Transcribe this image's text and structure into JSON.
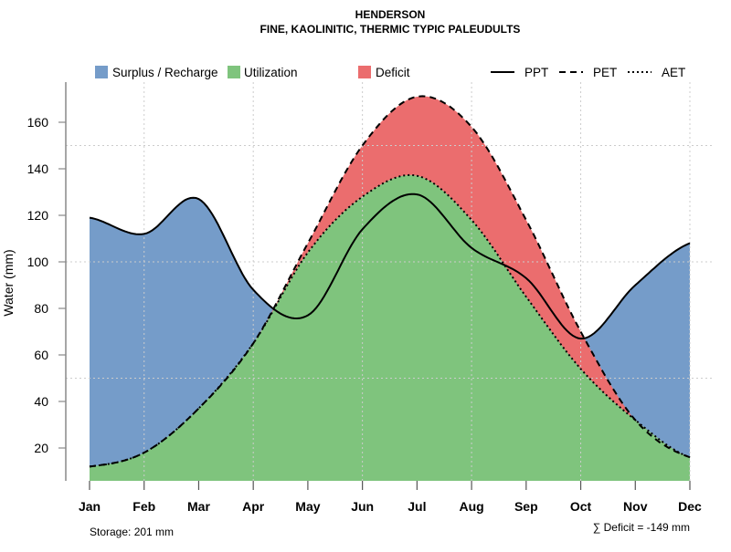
{
  "chart_data": {
    "type": "area",
    "title": "HENDERSON",
    "subtitle": "FINE, KAOLINITIC, THERMIC TYPIC PALEUDULTS",
    "xlabel": "",
    "ylabel": "Water (mm)",
    "categories": [
      "Jan",
      "Feb",
      "Mar",
      "Apr",
      "May",
      "Jun",
      "Jul",
      "Aug",
      "Sep",
      "Oct",
      "Nov",
      "Dec"
    ],
    "yticks": [
      20,
      40,
      60,
      80,
      100,
      120,
      140,
      160
    ],
    "ylim": [
      6,
      176
    ],
    "grid_y": [
      50,
      100,
      150
    ],
    "grid_x_months": [
      "Feb",
      "Apr",
      "Jun",
      "Aug",
      "Oct",
      "Dec"
    ],
    "series": [
      {
        "name": "PPT",
        "style": "solid",
        "values": [
          119,
          112,
          127,
          88,
          77,
          114,
          129,
          106,
          93,
          67,
          90,
          108
        ]
      },
      {
        "name": "PET",
        "style": "dashed",
        "values": [
          12,
          18,
          37,
          65,
          108,
          150,
          171,
          158,
          118,
          70,
          32,
          16
        ]
      },
      {
        "name": "AET",
        "style": "dotted",
        "values": [
          12,
          18,
          37,
          65,
          104,
          128,
          137,
          118,
          85,
          54,
          32,
          16
        ]
      }
    ],
    "legend": {
      "placement": "top",
      "fills": [
        {
          "label": "Surplus / Recharge",
          "color": "#759CC9"
        },
        {
          "label": "Utilization",
          "color": "#7FC47D"
        },
        {
          "label": "Deficit",
          "color": "#EB6D6E"
        }
      ],
      "lines": [
        {
          "label": "PPT",
          "style": "solid"
        },
        {
          "label": "PET",
          "style": "dashed"
        },
        {
          "label": "AET",
          "style": "dotted"
        }
      ]
    },
    "annotations": {
      "storage": "Storage: 201 mm",
      "deficit": "∑ Deficit = -149 mm"
    }
  }
}
